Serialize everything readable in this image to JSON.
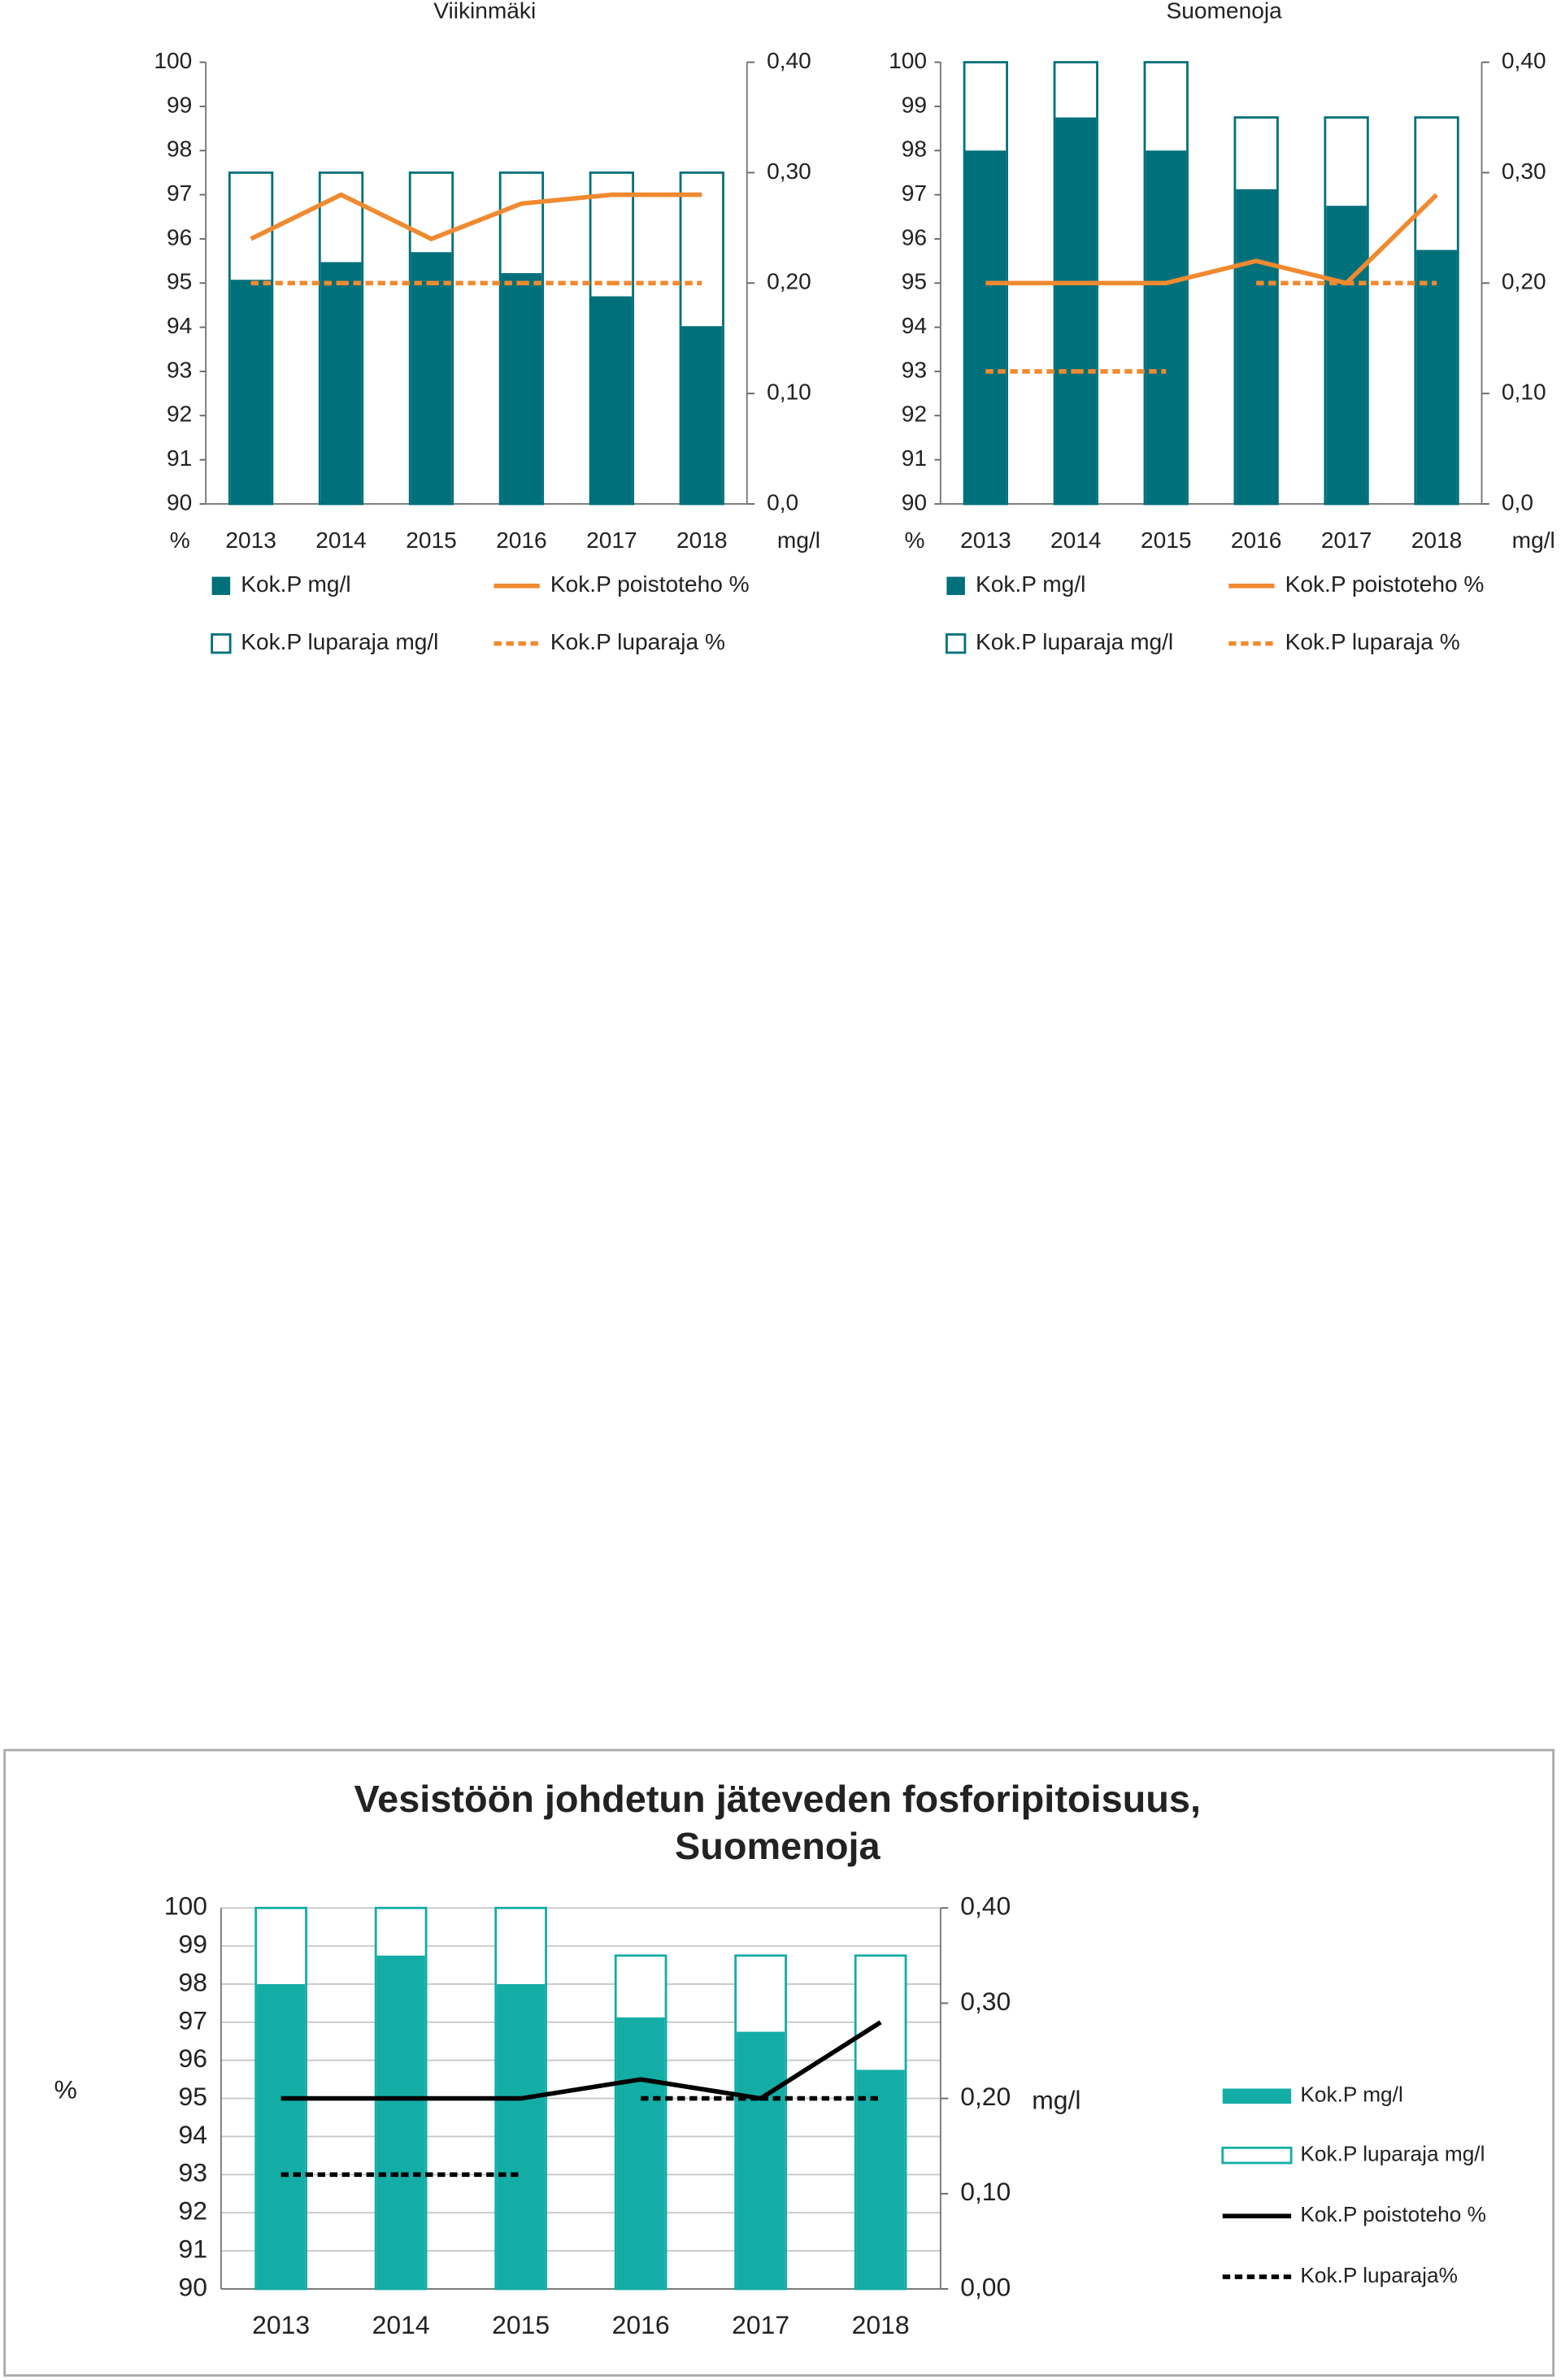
{
  "chart_data": [
    {
      "type": "bar",
      "title": "Viikinmäki",
      "y_label": "%",
      "y2_label": "mg/l",
      "categories": [
        "2013",
        "2014",
        "2015",
        "2016",
        "2017",
        "2018"
      ],
      "ylim": [
        90,
        100
      ],
      "yticks": [
        90,
        91,
        92,
        93,
        94,
        95,
        96,
        97,
        98,
        99,
        100
      ],
      "y2lim": [
        0,
        0.4
      ],
      "y2ticks": [
        {
          "value": 0,
          "label": "0,0"
        },
        {
          "value": 0.1,
          "label": "0,10"
        },
        {
          "value": 0.2,
          "label": "0,20"
        },
        {
          "value": 0.3,
          "label": "0,30"
        },
        {
          "value": 0.4,
          "label": "0,40"
        }
      ],
      "grid": false,
      "series": [
        {
          "name": "Kok.P mg/l",
          "style": "filled",
          "axis": "y2",
          "color": "#00707a",
          "values": [
            0.203,
            0.219,
            0.228,
            0.209,
            0.188,
            0.161
          ]
        },
        {
          "name": "Kok.P poistoteho %",
          "style": "solid",
          "axis": "y",
          "color": "#f08a30",
          "values": [
            96,
            97,
            96,
            96.8,
            97,
            97
          ]
        },
        {
          "name": "Kok.P luparaja mg/l",
          "style": "outline",
          "axis": "y2",
          "color": "#00707a",
          "values": [
            0.3,
            0.3,
            0.3,
            0.3,
            0.3,
            0.3
          ]
        },
        {
          "name": "Kok.P luparaja %",
          "style": "dashed",
          "axis": "y",
          "color": "#f08a30",
          "values": [
            95,
            95,
            95,
            95,
            95,
            95
          ]
        }
      ]
    },
    {
      "type": "bar",
      "title": "Suomenoja",
      "y_label": "%",
      "y2_label": "mg/l",
      "categories": [
        "2013",
        "2014",
        "2015",
        "2016",
        "2017",
        "2018"
      ],
      "ylim": [
        90,
        100
      ],
      "yticks": [
        90,
        91,
        92,
        93,
        94,
        95,
        96,
        97,
        98,
        99,
        100
      ],
      "y2lim": [
        0,
        0.4
      ],
      "y2ticks": [
        {
          "value": 0,
          "label": "0,0"
        },
        {
          "value": 0.1,
          "label": "0,10"
        },
        {
          "value": 0.2,
          "label": "0,20"
        },
        {
          "value": 0.3,
          "label": "0,30"
        },
        {
          "value": 0.4,
          "label": "0,40"
        }
      ],
      "grid": false,
      "series": [
        {
          "name": "Kok.P mg/l",
          "style": "filled",
          "axis": "y2",
          "color": "#00707a",
          "values": [
            0.32,
            0.35,
            0.32,
            0.285,
            0.27,
            0.23
          ]
        },
        {
          "name": "Kok.P poistoteho %",
          "style": "solid",
          "axis": "y",
          "color": "#f08a30",
          "values": [
            95,
            95,
            95,
            95.5,
            95,
            97
          ]
        },
        {
          "name": "Kok.P luparaja mg/l",
          "style": "outline",
          "axis": "y2",
          "color": "#00707a",
          "values": [
            0.4,
            0.4,
            0.4,
            0.35,
            0.35,
            0.35
          ]
        },
        {
          "name": "Kok.P luparaja %",
          "style": "dashed",
          "axis": "y",
          "color": "#f08a30",
          "values": [
            93,
            93,
            93,
            95,
            95,
            95
          ]
        }
      ]
    },
    {
      "type": "bar",
      "title": [
        "Vesistöön johdetun jäteveden fosforipitoisuus,",
        "Suomenoja"
      ],
      "y_label": "%",
      "y2_label": "mg/l",
      "categories": [
        "2013",
        "2014",
        "2015",
        "2016",
        "2017",
        "2018"
      ],
      "ylim": [
        90,
        100
      ],
      "yticks": [
        90,
        91,
        92,
        93,
        94,
        95,
        96,
        97,
        98,
        99,
        100
      ],
      "y2lim": [
        0,
        0.4
      ],
      "y2ticks": [
        {
          "value": 0,
          "label": "0,00"
        },
        {
          "value": 0.1,
          "label": "0,10"
        },
        {
          "value": 0.2,
          "label": "0,20"
        },
        {
          "value": 0.3,
          "label": "0,30"
        },
        {
          "value": 0.4,
          "label": "0,40"
        }
      ],
      "grid": true,
      "series": [
        {
          "name": "Kok.P mg/l",
          "style": "filled",
          "axis": "y2",
          "color": "#13ada6",
          "values": [
            0.32,
            0.35,
            0.32,
            0.285,
            0.27,
            0.23
          ]
        },
        {
          "name": "Kok.P luparaja mg/l",
          "style": "outline",
          "axis": "y2",
          "color": "#13ada6",
          "values": [
            0.4,
            0.4,
            0.4,
            0.35,
            0.35,
            0.35
          ]
        },
        {
          "name": "Kok.P poistoteho %",
          "style": "solid",
          "axis": "y",
          "color": "#000000",
          "values": [
            95,
            95,
            95,
            95.5,
            95,
            97
          ]
        },
        {
          "name": "Kok.P luparaja%",
          "style": "dashed",
          "axis": "y",
          "color": "#000000",
          "values": [
            93,
            93,
            93,
            95,
            95,
            95
          ]
        }
      ]
    }
  ]
}
